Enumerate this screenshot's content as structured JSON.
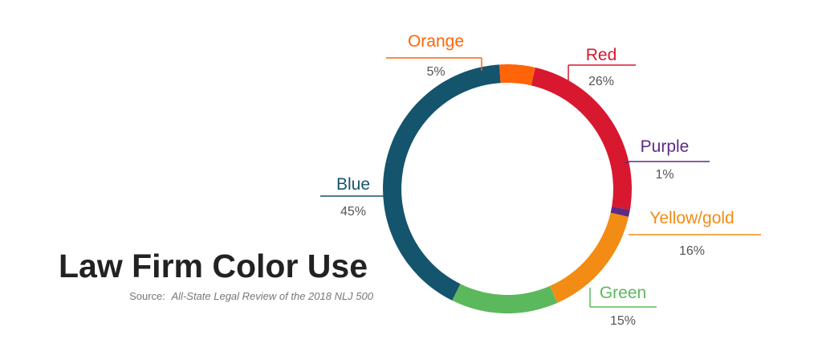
{
  "chart_data": {
    "type": "pie",
    "title": "Law Firm Color Use",
    "source": {
      "prefix": "Source:",
      "citation": "All-State Legal Review of the 2018 NLJ 500"
    },
    "slices": [
      {
        "label": "Red",
        "value": 26,
        "value_label": "26%",
        "color": "#d7182f"
      },
      {
        "label": "Purple",
        "value": 1,
        "value_label": "1%",
        "color": "#5e2a83"
      },
      {
        "label": "Yellow/gold",
        "value": 16,
        "value_label": "16%",
        "color": "#f28c14"
      },
      {
        "label": "Green",
        "value": 15,
        "value_label": "15%",
        "color": "#5cb85c"
      },
      {
        "label": "Blue",
        "value": 45,
        "value_label": "45%",
        "color": "#14546d"
      },
      {
        "label": "Orange",
        "value": 5,
        "value_label": "5%",
        "color": "#ff6408"
      }
    ]
  }
}
